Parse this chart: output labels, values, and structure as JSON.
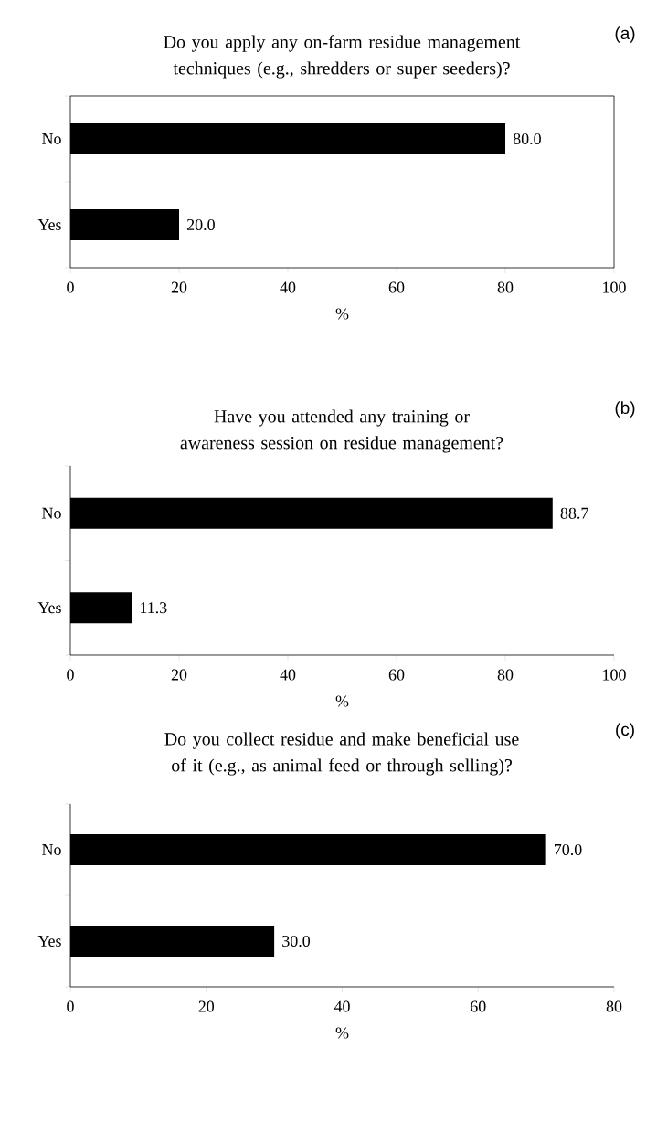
{
  "chart_data": [
    {
      "type": "bar",
      "orientation": "horizontal",
      "title": "Do you apply any on-farm residue management techniques (e.g., shredders or super seeders)?",
      "annotations": [
        "(a)"
      ],
      "categories": [
        "No",
        "Yes"
      ],
      "values": [
        80.0,
        20.0
      ],
      "value_labels": [
        "80.0",
        "20.0"
      ],
      "color": "#000000",
      "xlim": [
        0,
        100
      ],
      "xticks": [
        0,
        20,
        40,
        60,
        80,
        100
      ],
      "xlabel": "%"
    },
    {
      "type": "bar",
      "orientation": "horizontal",
      "title": "Have you attended any training or awareness session on residue management?",
      "annotations": [
        "(b)"
      ],
      "categories": [
        "No",
        "Yes"
      ],
      "values": [
        88.7,
        11.3
      ],
      "value_labels": [
        "88.7",
        "11.3"
      ],
      "color": "#000000",
      "xlim": [
        0,
        100
      ],
      "xticks": [
        0,
        20,
        40,
        60,
        80,
        100
      ],
      "xlabel": "%"
    },
    {
      "type": "bar",
      "orientation": "horizontal",
      "title": "Do you collect residue and make beneficial use of it (e.g., as animal feed or through selling)?",
      "annotations": [
        "(c)"
      ],
      "categories": [
        "No",
        "Yes"
      ],
      "values": [
        70.0,
        30.0
      ],
      "value_labels": [
        "70.0",
        "30.0"
      ],
      "color": "#000000",
      "xlim": [
        0,
        80
      ],
      "xticks": [
        0,
        20,
        40,
        60,
        80
      ],
      "xlabel": "%"
    }
  ]
}
